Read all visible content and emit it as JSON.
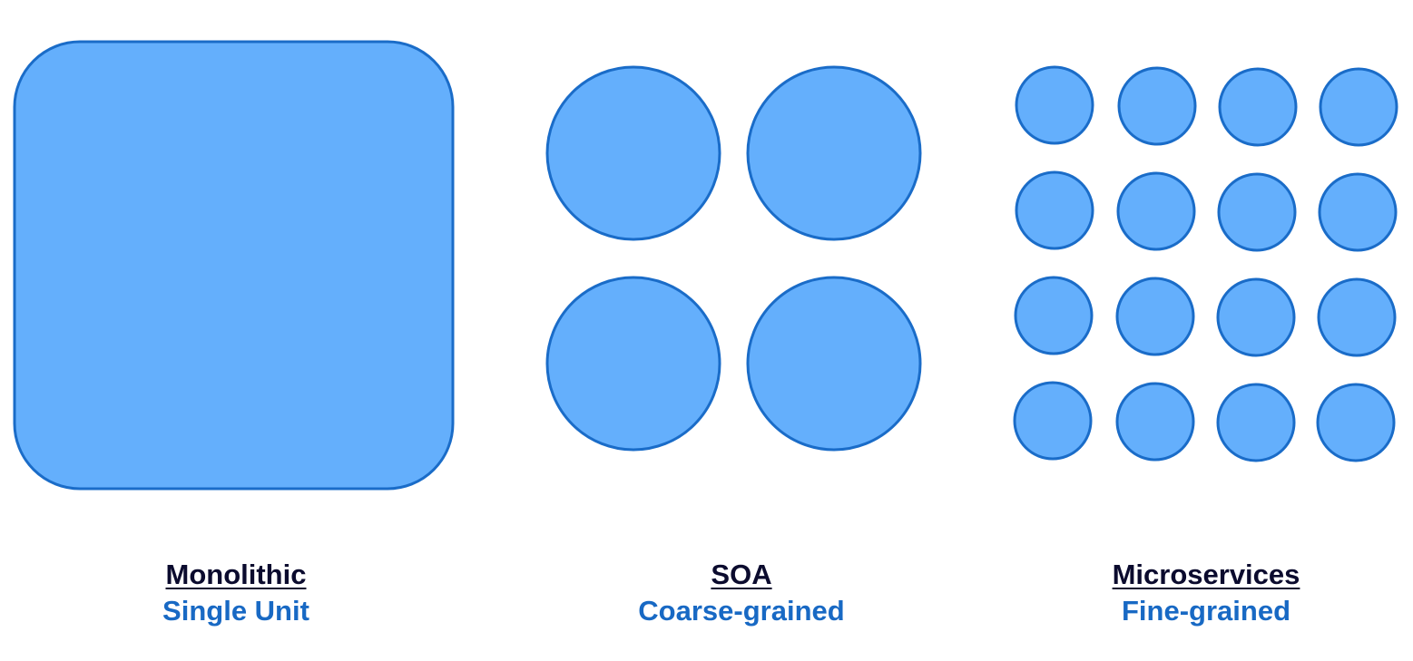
{
  "colors": {
    "fill": "#64AFFC",
    "stroke": "#1A6CC8",
    "title": "#0B0B2E",
    "subtitle": "#1869C4"
  },
  "architectures": [
    {
      "title": "Monolithic",
      "subtitle": "Single Unit"
    },
    {
      "title": "SOA",
      "subtitle": "Coarse-grained"
    },
    {
      "title": "Microservices",
      "subtitle": "Fine-grained"
    }
  ]
}
